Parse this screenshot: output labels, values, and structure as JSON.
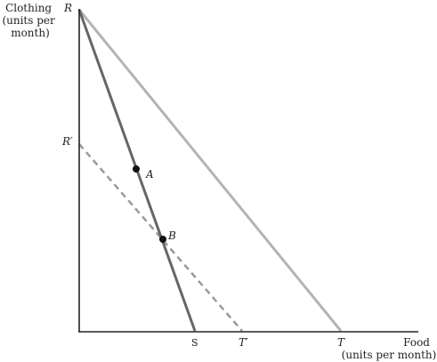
{
  "y_axis_title": [
    "Clothing",
    "(units per",
    "month)"
  ],
  "x_axis_title": [
    "Food",
    "(units per month)"
  ],
  "labels": {
    "R": "R",
    "R_prime": "R′",
    "A": "A",
    "B": "B",
    "S": "S",
    "T_prime": "T′",
    "T": "T"
  },
  "colors": {
    "axis": "#222222",
    "line_RS": "#666666",
    "line_RT": "#b4b4b4",
    "line_RpTp": "#9a9a9a",
    "point": "#111111"
  }
}
